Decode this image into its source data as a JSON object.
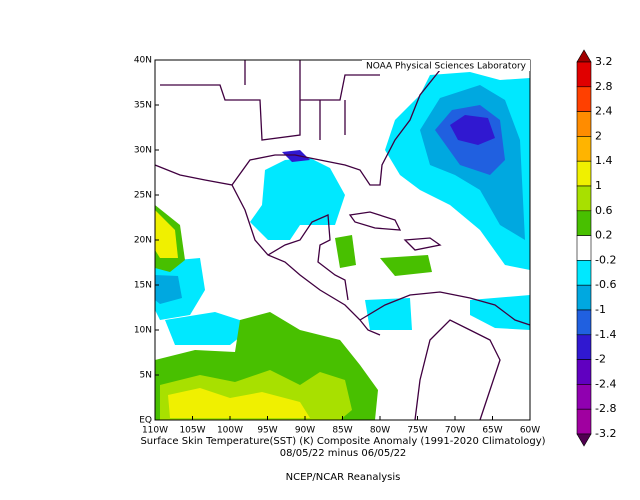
{
  "map": {
    "credit": "NOAA Physical Sciences Laboratory",
    "lon_ticks": [
      "110W",
      "105W",
      "100W",
      "95W",
      "90W",
      "85W",
      "80W",
      "75W",
      "70W",
      "65W",
      "60W"
    ],
    "lat_ticks": [
      "EQ",
      "5N",
      "10N",
      "15N",
      "20N",
      "25N",
      "30N",
      "35N",
      "40N"
    ]
  },
  "caption": {
    "line1": "Surface Skin Temperature(SST) (K) Composite Anomaly (1991-2020 Climatology)",
    "line2": "08/05/22 minus 06/05/22",
    "line3": "NCEP/NCAR Reanalysis"
  },
  "colorbar": {
    "levels": [
      3.2,
      2.8,
      2.4,
      2,
      1.4,
      1,
      0.6,
      0.2,
      -0.2,
      -0.6,
      -1,
      -1.4,
      -2,
      -2.4,
      -2.8,
      -3.2
    ],
    "colors": [
      "#a00000",
      "#e00000",
      "#ff4000",
      "#ff8c00",
      "#ffb400",
      "#f0f000",
      "#a8e000",
      "#48c000",
      "#ffffff",
      "#00e8ff",
      "#00a8e0",
      "#2060e0",
      "#3018d0",
      "#6000c0",
      "#9000b0",
      "#a000a0",
      "#500050"
    ]
  }
}
